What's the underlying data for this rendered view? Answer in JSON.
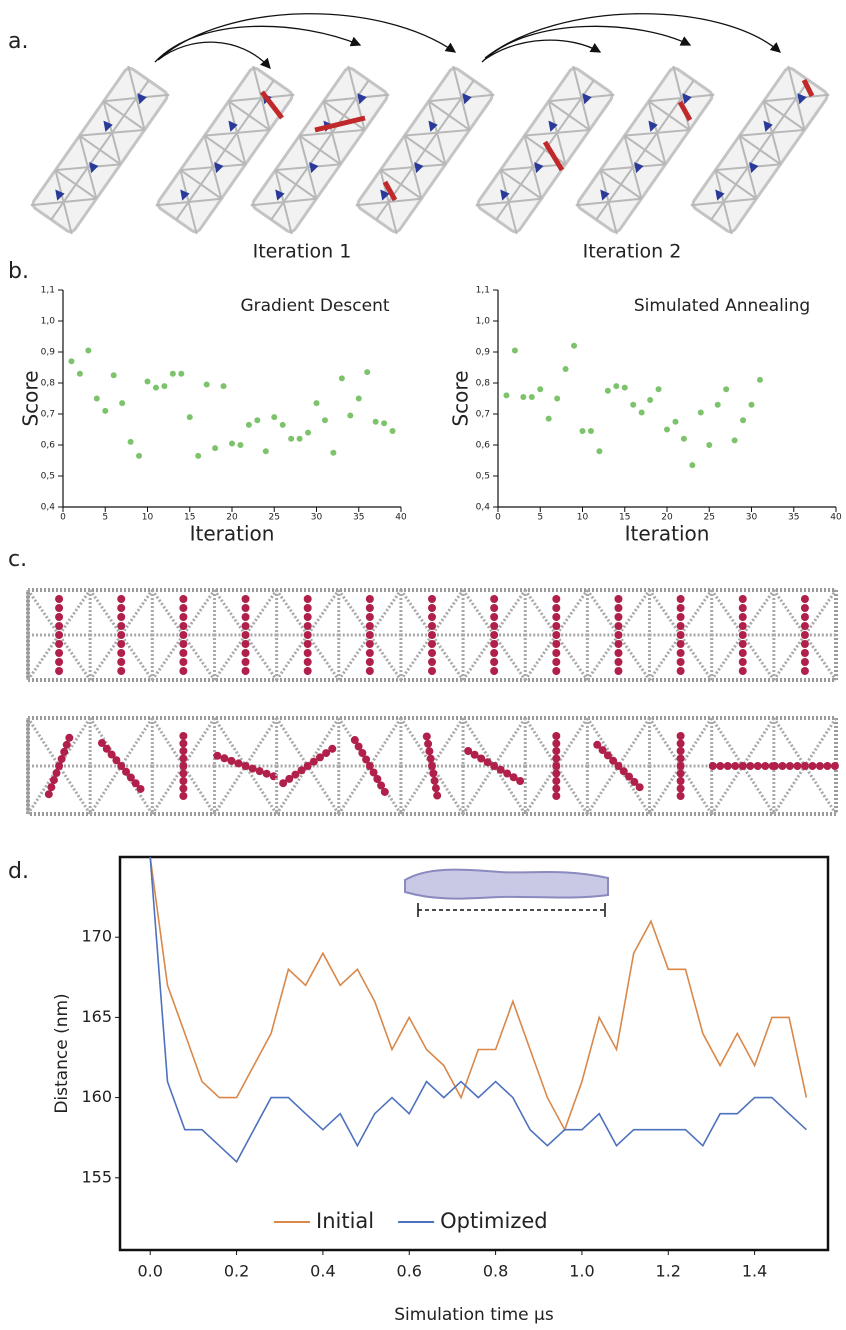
{
  "panel_labels": [
    "a.",
    "b.",
    "c.",
    "d."
  ],
  "captions": [
    "Iteration 1",
    "Iteration 2"
  ],
  "chart_data": [
    {
      "type": "scatter",
      "title": "Gradient Descent",
      "x_label": "Iteration",
      "y_label": "Score",
      "color": "#7dc36b",
      "x": [
        1,
        2,
        3,
        4,
        5,
        6,
        7,
        8,
        9,
        10,
        11,
        12,
        13,
        14,
        15,
        16,
        17,
        18,
        19,
        20,
        21,
        22,
        23,
        24,
        25,
        26,
        27,
        28,
        29,
        30,
        31,
        32,
        33,
        34,
        35,
        36,
        37,
        38,
        39
      ],
      "values": [
        0.87,
        0.83,
        0.905,
        0.75,
        0.71,
        0.825,
        0.735,
        0.61,
        0.565,
        0.805,
        0.785,
        0.79,
        0.83,
        0.83,
        0.69,
        0.565,
        0.795,
        0.59,
        0.79,
        0.605,
        0.6,
        0.665,
        0.68,
        0.58,
        0.69,
        0.665,
        0.62,
        0.62,
        0.64,
        0.735,
        0.68,
        0.575,
        0.815,
        0.695,
        0.75,
        0.835,
        0.675,
        0.67,
        0.645
      ],
      "xlim": [
        0,
        40
      ],
      "ylim": [
        0.4,
        1.1
      ],
      "xticks": [
        0,
        5,
        10,
        15,
        20,
        25,
        30,
        35,
        40
      ],
      "yticks": [
        {
          "value": 0.4,
          "label": "0,4"
        },
        {
          "value": 0.5,
          "label": "0,5"
        },
        {
          "value": 0.6,
          "label": "0,6"
        },
        {
          "value": 0.7,
          "label": "0,7"
        },
        {
          "value": 0.8,
          "label": "0,8"
        },
        {
          "value": 0.9,
          "label": "0,9"
        },
        {
          "value": 1.0,
          "label": "1,0"
        },
        {
          "value": 1.1,
          "label": "1,1"
        }
      ]
    },
    {
      "type": "scatter",
      "title": "Simulated Annealing",
      "x_label": "Iteration",
      "y_label": "Score",
      "color": "#7dc36b",
      "x": [
        1,
        2,
        3,
        4,
        5,
        6,
        7,
        8,
        9,
        10,
        11,
        12,
        13,
        14,
        15,
        16,
        17,
        18,
        19,
        20,
        21,
        22,
        23,
        24,
        25,
        26,
        27,
        28,
        29,
        30,
        31
      ],
      "values": [
        0.76,
        0.905,
        0.755,
        0.755,
        0.78,
        0.685,
        0.75,
        0.845,
        0.92,
        0.645,
        0.645,
        0.58,
        0.775,
        0.79,
        0.785,
        0.73,
        0.705,
        0.745,
        0.78,
        0.65,
        0.675,
        0.62,
        0.535,
        0.705,
        0.6,
        0.73,
        0.78,
        0.615,
        0.68,
        0.73,
        0.81
      ],
      "xlim": [
        0,
        40
      ],
      "ylim": [
        0.4,
        1.1
      ],
      "xticks": [
        0,
        5,
        10,
        15,
        20,
        25,
        30,
        35,
        40
      ],
      "yticks": [
        {
          "value": 0.4,
          "label": "0,4"
        },
        {
          "value": 0.5,
          "label": "0,5"
        },
        {
          "value": 0.6,
          "label": "0,6"
        },
        {
          "value": 0.7,
          "label": "0,7"
        },
        {
          "value": 0.8,
          "label": "0,8"
        },
        {
          "value": 0.9,
          "label": "0,9"
        },
        {
          "value": 1.0,
          "label": "1,0"
        },
        {
          "value": 1.1,
          "label": "1,1"
        }
      ]
    },
    {
      "type": "line",
      "x_label": "Simulation time μs",
      "y_label": "Distance (nm)",
      "legend": "lower center",
      "x": [
        0,
        0.04,
        0.08,
        0.12,
        0.16,
        0.2,
        0.24,
        0.28,
        0.32,
        0.36,
        0.4,
        0.44,
        0.48,
        0.52,
        0.56,
        0.6,
        0.64,
        0.68,
        0.72,
        0.76,
        0.8,
        0.84,
        0.88,
        0.92,
        0.96,
        1.0,
        1.04,
        1.08,
        1.12,
        1.16,
        1.2,
        1.24,
        1.28,
        1.32,
        1.36,
        1.4,
        1.44,
        1.48,
        1.52
      ],
      "series": [
        {
          "name": "Initial",
          "color": "#d9884a",
          "values": [
            175,
            167,
            164,
            161,
            160,
            160,
            162,
            164,
            168,
            167,
            169,
            167,
            168,
            166,
            163,
            165,
            163,
            162,
            160,
            163,
            163,
            166,
            163,
            160,
            158,
            161,
            165,
            163,
            169,
            171,
            168,
            168,
            164,
            162,
            164,
            162,
            165,
            165,
            160
          ]
        },
        {
          "name": "Optimized",
          "color": "#4e72bd",
          "values": [
            175,
            161,
            158,
            158,
            157,
            156,
            158,
            160,
            160,
            159,
            158,
            159,
            157,
            159,
            160,
            159,
            161,
            160,
            161,
            160,
            161,
            160,
            158,
            157,
            158,
            158,
            159,
            157,
            158,
            158,
            158,
            158,
            157,
            159,
            159,
            160,
            160,
            159,
            158
          ]
        }
      ],
      "xlim": [
        -0.07,
        1.57
      ],
      "ylim": [
        150.5,
        175
      ],
      "xticks": [
        {
          "value": 0,
          "label": "0.0"
        },
        0.2,
        0.4,
        0.6,
        0.8,
        {
          "value": 1.0,
          "label": "1.0"
        },
        1.2,
        1.4
      ],
      "yticks": [
        155,
        160,
        165,
        170
      ]
    }
  ]
}
